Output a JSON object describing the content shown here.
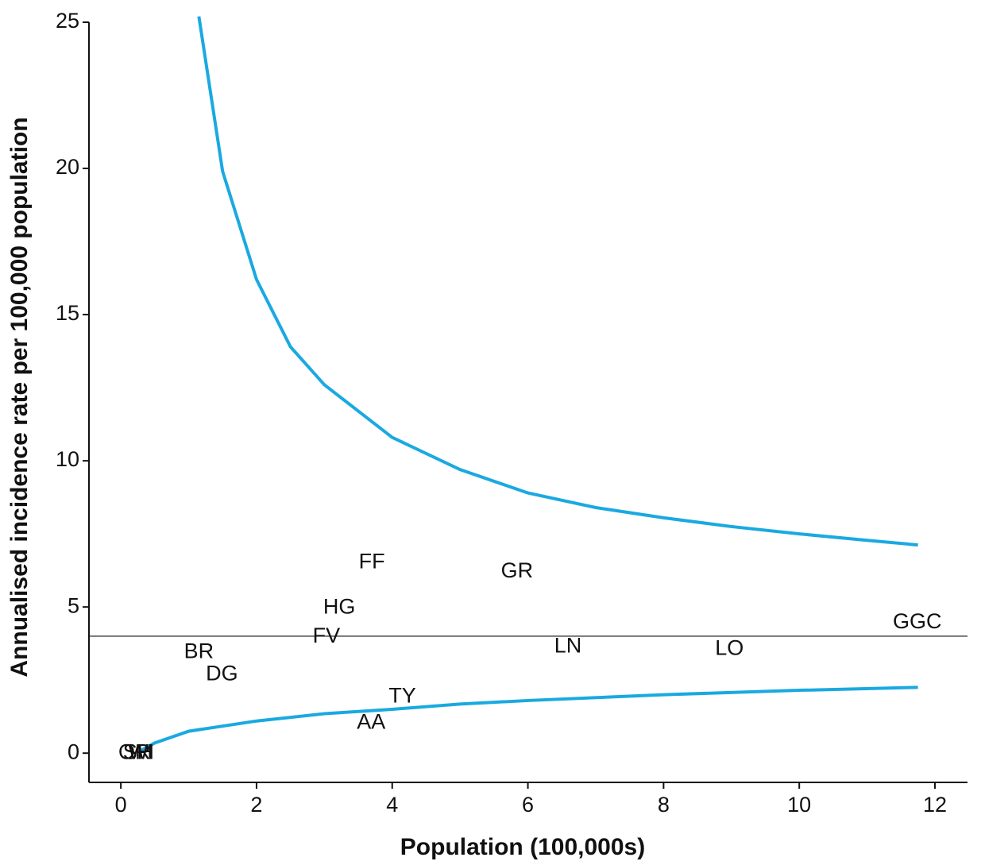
{
  "chart_data": {
    "type": "funnel",
    "x_label": "Population (100,000s)",
    "y_label": "Annualised incidence rate per 100,000 population",
    "xlim": [
      -0.47,
      12.48
    ],
    "ylim": [
      -1,
      25
    ],
    "xticks": [
      0,
      2,
      4,
      6,
      8,
      10,
      12
    ],
    "yticks": [
      0,
      5,
      10,
      15,
      20,
      25
    ],
    "reference": 4,
    "limits": [
      {
        "color": "#1aa9e0",
        "x": [
          1.15,
          1.5,
          2,
          2.5,
          3,
          4,
          5,
          6,
          7,
          8,
          9,
          10,
          11,
          11.75
        ],
        "values": [
          25.2,
          19.9,
          16.2,
          13.9,
          12.6,
          10.8,
          9.7,
          8.9,
          8.4,
          8.05,
          7.75,
          7.5,
          7.28,
          7.12
        ]
      },
      {
        "color": "#1aa9e0",
        "x": [
          0.3,
          0.5,
          1,
          2,
          3,
          4,
          5,
          6,
          8,
          10,
          11.75
        ],
        "values": [
          0.1,
          0.35,
          0.75,
          1.1,
          1.35,
          1.5,
          1.68,
          1.8,
          2.0,
          2.15,
          2.25
        ]
      }
    ],
    "points": [
      {
        "label": "FF",
        "x": 3.7,
        "y": 6.52
      },
      {
        "label": "GR",
        "x": 5.84,
        "y": 6.2
      },
      {
        "label": "HG",
        "x": 3.22,
        "y": 4.97
      },
      {
        "label": "FV",
        "x": 3.03,
        "y": 3.97
      },
      {
        "label": "BR",
        "x": 1.15,
        "y": 3.45
      },
      {
        "label": "DG",
        "x": 1.49,
        "y": 2.69
      },
      {
        "label": "LN",
        "x": 6.59,
        "y": 3.64
      },
      {
        "label": "LO",
        "x": 8.97,
        "y": 3.56
      },
      {
        "label": "GGC",
        "x": 11.74,
        "y": 4.46
      },
      {
        "label": "TY",
        "x": 4.15,
        "y": 1.93
      },
      {
        "label": "AA",
        "x": 3.69,
        "y": 1.03
      },
      {
        "label": "OR",
        "x": 0.2,
        "y": 0
      },
      {
        "label": "SH",
        "x": 0.25,
        "y": 0
      },
      {
        "label": "WI",
        "x": 0.3,
        "y": 0
      }
    ]
  }
}
